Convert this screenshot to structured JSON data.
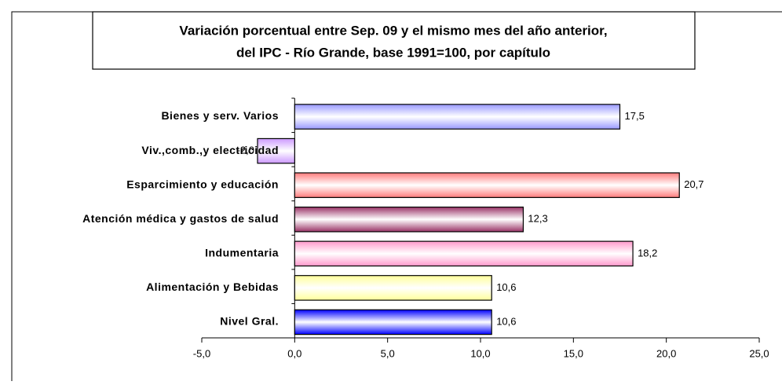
{
  "chart_data": {
    "type": "bar",
    "orientation": "horizontal",
    "title": "Variación porcentual entre Sep. 09 y el mismo  mes del año anterior,",
    "subtitle": "del IPC - Río Grande, base 1991=100, por capítulo",
    "categories": [
      "Bienes y serv. Varios",
      "Viv.,comb.,y electricidad",
      "Esparcimiento y educación",
      "Atención médica y gastos de salud",
      "Indumentaria",
      "Alimentación y Bebidas",
      "Nivel Gral."
    ],
    "values": [
      17.5,
      -2.0,
      20.7,
      12.3,
      18.2,
      10.6,
      10.6
    ],
    "value_labels": [
      "17,5",
      "-2,0",
      "20,7",
      "12,3",
      "18,2",
      "10,6",
      "10,6"
    ],
    "colors": [
      "#9999ff",
      "#cc99ff",
      "#ff7b7b",
      "#993366",
      "#ff99cc",
      "#ffff99",
      "#0000ff"
    ],
    "xlim": [
      -5,
      25
    ],
    "xticks": [
      {
        "value": -5,
        "label": "-5,0"
      },
      {
        "value": 0,
        "label": "0,0"
      },
      {
        "value": 5,
        "label": "5,0"
      },
      {
        "value": 10,
        "label": "10,0"
      },
      {
        "value": 15,
        "label": "15,0"
      },
      {
        "value": 20,
        "label": "20,0"
      },
      {
        "value": 25,
        "label": "25,0"
      }
    ]
  }
}
